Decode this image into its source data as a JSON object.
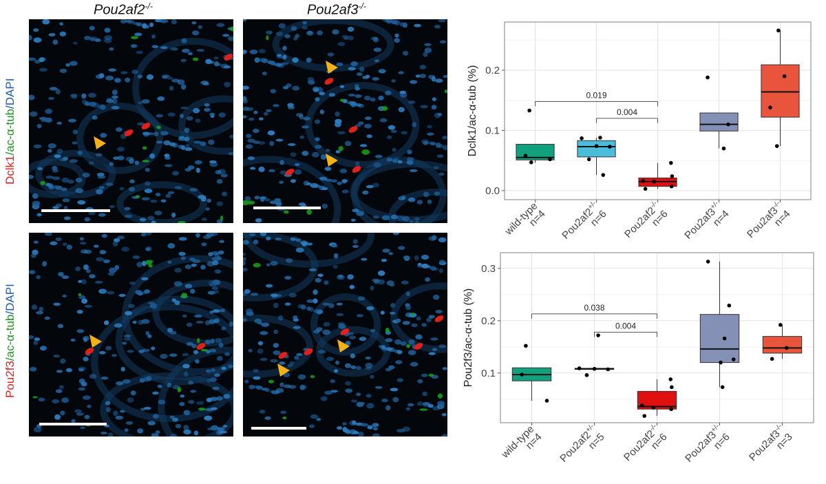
{
  "figure": {
    "column_titles": [
      {
        "base": "Pou2af2",
        "sup": "-/-"
      },
      {
        "base": "Pou2af3",
        "sup": "-/-"
      }
    ],
    "row_labels": [
      {
        "marker": "Dclk1",
        "mid": "ac-α-tub",
        "end": "DAPI"
      },
      {
        "marker": "Pou2f3",
        "mid": "ac-α-tub",
        "end": "DAPI"
      }
    ],
    "colors": {
      "marker": "#e0201a",
      "tubulin": "#1a9a1a",
      "dapi": "#1f5fb0",
      "arrow": "#f5b116"
    }
  },
  "chart_data": [
    {
      "type": "box",
      "ylabel": "Dclk1/ac-α-tub (%)",
      "ylim": [
        -0.015,
        0.28
      ],
      "yticks": [
        "0.0",
        "0.1",
        "0.2"
      ],
      "ytick_values": [
        0.0,
        0.1,
        0.2
      ],
      "grid": true,
      "categories": [
        {
          "name": "wild-type",
          "sup": "",
          "n": "n=4",
          "color": "#13a07f",
          "q1": 0.051,
          "median": 0.055,
          "q3": 0.077,
          "wlow": 0.046,
          "whigh": 0.077,
          "points": [
            0.133,
            0.058,
            0.052,
            0.047
          ]
        },
        {
          "name": "Pou2af2",
          "sup": "+/-",
          "n": "n=6",
          "color": "#4bbcd9",
          "q1": 0.056,
          "median": 0.073,
          "q3": 0.083,
          "wlow": 0.026,
          "whigh": 0.088,
          "points": [
            0.088,
            0.087,
            0.074,
            0.073,
            0.052,
            0.026
          ]
        },
        {
          "name": "Pou2af2",
          "sup": "-/-",
          "n": "n=6",
          "color": "#e01010",
          "q1": 0.007,
          "median": 0.015,
          "q3": 0.021,
          "wlow": 0.003,
          "whigh": 0.046,
          "points": [
            0.046,
            0.024,
            0.016,
            0.015,
            0.007,
            0.003
          ]
        },
        {
          "name": "Pou2af3",
          "sup": "+/-",
          "n": "n=4",
          "color": "#8490b6",
          "q1": 0.099,
          "median": 0.11,
          "q3": 0.129,
          "wlow": 0.07,
          "whigh": 0.129,
          "points": [
            0.188,
            0.11,
            0.07
          ]
        },
        {
          "name": "Pou2af3",
          "sup": "-/-",
          "n": "n=4",
          "color": "#e8543c",
          "q1": 0.122,
          "median": 0.164,
          "q3": 0.209,
          "wlow": 0.074,
          "whigh": 0.266,
          "points": [
            0.266,
            0.19,
            0.138,
            0.074
          ]
        }
      ],
      "significance": [
        {
          "from": 0,
          "to": 2,
          "y": 0.148,
          "label": "0.019"
        },
        {
          "from": 1,
          "to": 2,
          "y": 0.12,
          "label": "0.004"
        }
      ]
    },
    {
      "type": "box",
      "ylabel": "Pou2f3/ac-α-tub (%)",
      "ylim": [
        0.005,
        0.33
      ],
      "yticks": [
        "0.1",
        "0.2",
        "0.3"
      ],
      "ytick_values": [
        0.1,
        0.2,
        0.3
      ],
      "grid": true,
      "categories": [
        {
          "name": "wild-type",
          "sup": "",
          "n": "n=4",
          "color": "#13a07f",
          "q1": 0.085,
          "median": 0.097,
          "q3": 0.11,
          "wlow": 0.047,
          "whigh": 0.11,
          "points": [
            0.152,
            0.097,
            0.047
          ]
        },
        {
          "name": "Pou2af2",
          "sup": "+/-",
          "n": "n=5",
          "color": "#4bbcd9",
          "q1": 0.107,
          "median": 0.108,
          "q3": 0.109,
          "wlow": 0.108,
          "whigh": 0.108,
          "points": [
            0.172,
            0.109,
            0.108,
            0.107,
            0.096
          ]
        },
        {
          "name": "Pou2af2",
          "sup": "-/-",
          "n": "n=6",
          "color": "#e01010",
          "q1": 0.031,
          "median": 0.036,
          "q3": 0.065,
          "wlow": 0.018,
          "whigh": 0.088,
          "points": [
            0.088,
            0.073,
            0.038,
            0.034,
            0.031,
            0.018
          ]
        },
        {
          "name": "Pou2af3",
          "sup": "+/-",
          "n": "n=6",
          "color": "#8490b6",
          "q1": 0.12,
          "median": 0.146,
          "q3": 0.212,
          "wlow": 0.073,
          "whigh": 0.313,
          "points": [
            0.313,
            0.229,
            0.166,
            0.126,
            0.12,
            0.073
          ]
        },
        {
          "name": "Pou2af3",
          "sup": "-/-",
          "n": "n=3",
          "color": "#e8543c",
          "q1": 0.138,
          "median": 0.148,
          "q3": 0.17,
          "wlow": 0.127,
          "whigh": 0.192,
          "points": [
            0.192,
            0.148,
            0.127
          ]
        }
      ],
      "significance": [
        {
          "from": 0,
          "to": 2,
          "y": 0.213,
          "label": "0.038"
        },
        {
          "from": 1,
          "to": 2,
          "y": 0.178,
          "label": "0.004"
        }
      ]
    }
  ]
}
